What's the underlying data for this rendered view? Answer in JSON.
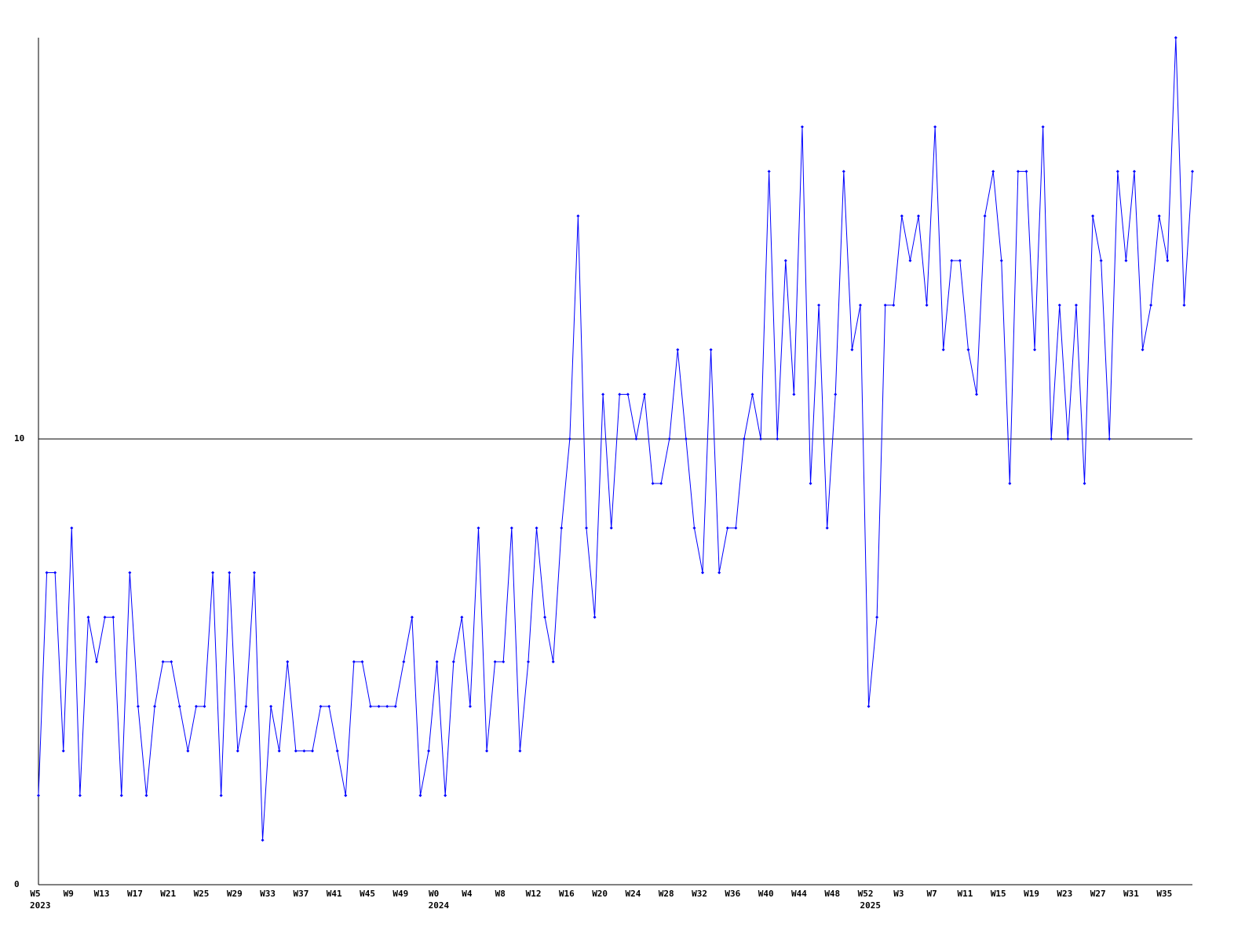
{
  "chart_data": {
    "type": "line",
    "categories": [
      "W5",
      null,
      null,
      null,
      "W9",
      null,
      null,
      null,
      "W13",
      null,
      null,
      null,
      "W17",
      null,
      null,
      null,
      "W21",
      null,
      null,
      null,
      "W25",
      null,
      null,
      null,
      "W29",
      null,
      null,
      null,
      "W33",
      null,
      null,
      null,
      "W37",
      null,
      null,
      null,
      "W41",
      null,
      null,
      null,
      "W45",
      null,
      null,
      null,
      "W49",
      null,
      null,
      null,
      "W0",
      null,
      null,
      null,
      "W4",
      null,
      null,
      null,
      "W8",
      null,
      null,
      null,
      "W12",
      null,
      null,
      null,
      "W16",
      null,
      null,
      null,
      "W20",
      null,
      null,
      null,
      "W24",
      null,
      null,
      null,
      "W28",
      null,
      null,
      null,
      "W32",
      null,
      null,
      null,
      "W36",
      null,
      null,
      null,
      "W40",
      null,
      null,
      null,
      "W44",
      null,
      null,
      null,
      "W48",
      null,
      null,
      null,
      "W52",
      null,
      null,
      null,
      "W3",
      null,
      null,
      null,
      "W7",
      null,
      null,
      null,
      "W11",
      null,
      null,
      null,
      "W15",
      null,
      null,
      null,
      "W19",
      null,
      null,
      null,
      "W23",
      null,
      null,
      null,
      "W27",
      null,
      null,
      null,
      "W31",
      null,
      null,
      null,
      "W35",
      null,
      null,
      null
    ],
    "category_years": [
      "2023",
      null,
      null,
      null,
      null,
      null,
      null,
      null,
      null,
      null,
      null,
      null,
      null,
      null,
      null,
      null,
      null,
      null,
      null,
      null,
      null,
      null,
      null,
      null,
      null,
      null,
      null,
      null,
      null,
      null,
      null,
      null,
      null,
      null,
      null,
      null,
      null,
      null,
      null,
      null,
      null,
      null,
      null,
      null,
      null,
      null,
      null,
      null,
      "2024",
      null,
      null,
      null,
      null,
      null,
      null,
      null,
      null,
      null,
      null,
      null,
      null,
      null,
      null,
      null,
      null,
      null,
      null,
      null,
      null,
      null,
      null,
      null,
      null,
      null,
      null,
      null,
      null,
      null,
      null,
      null,
      null,
      null,
      null,
      null,
      null,
      null,
      null,
      null,
      null,
      null,
      null,
      null,
      null,
      null,
      null,
      null,
      null,
      null,
      null,
      null,
      "2025",
      null,
      null,
      null,
      null,
      null,
      null,
      null,
      null,
      null,
      null,
      null,
      null,
      null,
      null,
      null,
      null,
      null,
      null,
      null,
      null,
      null,
      null,
      null,
      null,
      null,
      null,
      null,
      null,
      null,
      null,
      null,
      null,
      null,
      null,
      null,
      null,
      null,
      null,
      null
    ],
    "values": [
      2,
      7,
      7,
      3,
      8,
      2,
      6,
      5,
      6,
      6,
      2,
      7,
      4,
      2,
      4,
      5,
      5,
      4,
      3,
      4,
      4,
      7,
      2,
      7,
      3,
      4,
      7,
      1,
      4,
      3,
      5,
      3,
      3,
      3,
      4,
      4,
      3,
      2,
      5,
      5,
      4,
      4,
      4,
      4,
      5,
      6,
      2,
      3,
      5,
      2,
      5,
      6,
      4,
      8,
      3,
      5,
      5,
      8,
      3,
      5,
      8,
      6,
      5,
      8,
      10,
      15,
      8,
      6,
      11,
      8,
      11,
      11,
      10,
      11,
      9,
      9,
      10,
      12,
      10,
      8,
      7,
      12,
      7,
      8,
      8,
      10,
      11,
      10,
      16,
      10,
      14,
      11,
      17,
      9,
      13,
      8,
      11,
      16,
      12,
      13,
      4,
      6,
      13,
      13,
      15,
      14,
      15,
      13,
      17,
      12,
      14,
      14,
      12,
      11,
      15,
      16,
      14,
      9,
      16,
      16,
      12,
      17,
      10,
      13,
      10,
      13,
      9,
      15,
      14,
      10,
      16,
      14,
      16,
      12,
      13,
      15,
      14,
      19,
      13,
      16
    ],
    "color": "#0000ff",
    "ylim": [
      0,
      19
    ],
    "yticks": [
      0,
      10
    ],
    "grid": true
  }
}
